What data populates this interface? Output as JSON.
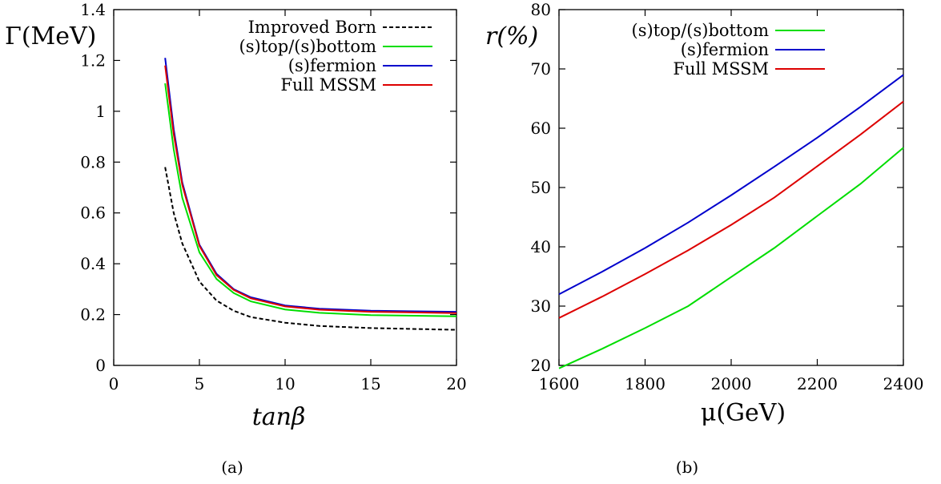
{
  "chart_data": [
    {
      "type": "line",
      "panel_label": "(a)",
      "xlabel": "tanβ",
      "ylabel": "Γ(MeV)",
      "xlim": [
        0,
        20
      ],
      "ylim": [
        0,
        1.4
      ],
      "xticks": [
        0,
        5,
        10,
        15,
        20
      ],
      "yticks": [
        0,
        0.2,
        0.4,
        0.6,
        0.8,
        1,
        1.2,
        1.4
      ],
      "grid": false,
      "legend_position": "top-right",
      "series": [
        {
          "name": "Improved Born",
          "color": "#000000",
          "dash": "dashed",
          "x": [
            3,
            3.5,
            4,
            5,
            6,
            7,
            8,
            10,
            12,
            15,
            20
          ],
          "y": [
            0.78,
            0.6,
            0.48,
            0.33,
            0.255,
            0.215,
            0.19,
            0.168,
            0.155,
            0.147,
            0.14
          ]
        },
        {
          "name": "(s)top/(s)bottom",
          "color": "#00dd00",
          "dash": "solid",
          "x": [
            3,
            3.5,
            4,
            5,
            6,
            7,
            8,
            10,
            12,
            15,
            20
          ],
          "y": [
            1.11,
            0.85,
            0.66,
            0.445,
            0.34,
            0.285,
            0.252,
            0.22,
            0.207,
            0.198,
            0.193
          ]
        },
        {
          "name": "(s)fermion",
          "color": "#0000cc",
          "dash": "solid",
          "x": [
            3,
            3.5,
            4,
            5,
            6,
            7,
            8,
            10,
            12,
            15,
            20
          ],
          "y": [
            1.21,
            0.93,
            0.72,
            0.475,
            0.36,
            0.3,
            0.268,
            0.236,
            0.223,
            0.215,
            0.211
          ]
        },
        {
          "name": "Full MSSM",
          "color": "#dd0000",
          "dash": "solid",
          "x": [
            3,
            3.5,
            4,
            5,
            6,
            7,
            8,
            10,
            12,
            15,
            20
          ],
          "y": [
            1.18,
            0.91,
            0.71,
            0.47,
            0.355,
            0.297,
            0.264,
            0.232,
            0.219,
            0.211,
            0.206
          ]
        }
      ]
    },
    {
      "type": "line",
      "panel_label": "(b)",
      "xlabel": "μ(GeV)",
      "ylabel": "r(%)",
      "xlim": [
        1600,
        2400
      ],
      "ylim": [
        20,
        80
      ],
      "xticks": [
        1600,
        1800,
        2000,
        2200,
        2400
      ],
      "yticks": [
        20,
        30,
        40,
        50,
        60,
        70,
        80
      ],
      "grid": false,
      "legend_position": "top-right",
      "series": [
        {
          "name": "(s)top/(s)bottom",
          "color": "#00dd00",
          "dash": "solid",
          "x": [
            1600,
            1700,
            1800,
            1900,
            2000,
            2100,
            2200,
            2300,
            2400
          ],
          "y": [
            19.5,
            22.8,
            26.3,
            30.0,
            34.9,
            39.8,
            45.2,
            50.6,
            56.7
          ]
        },
        {
          "name": "(s)fermion",
          "color": "#0000cc",
          "dash": "solid",
          "x": [
            1600,
            1700,
            1800,
            1900,
            2000,
            2100,
            2200,
            2300,
            2400
          ],
          "y": [
            32.0,
            35.8,
            39.8,
            44.1,
            48.7,
            53.5,
            58.4,
            63.6,
            69.0
          ]
        },
        {
          "name": "Full MSSM",
          "color": "#dd0000",
          "dash": "solid",
          "x": [
            1600,
            1700,
            1800,
            1900,
            2000,
            2100,
            2200,
            2300,
            2400
          ],
          "y": [
            28.0,
            31.6,
            35.4,
            39.4,
            43.7,
            48.3,
            53.6,
            58.9,
            64.5
          ]
        }
      ]
    }
  ]
}
